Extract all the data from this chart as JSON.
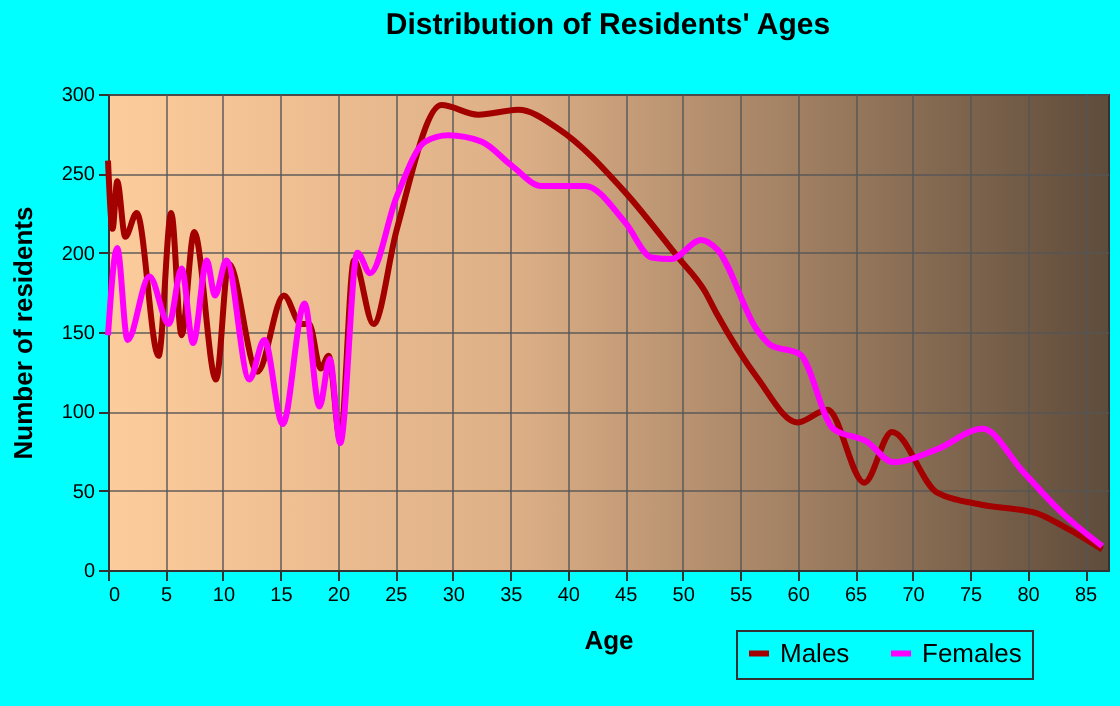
{
  "chart_data": {
    "type": "line",
    "title": "Distribution of Residents' Ages",
    "xlabel": "Age",
    "ylabel": "Number of residents",
    "xlim": [
      0,
      87
    ],
    "xticks": [
      0,
      5,
      10,
      15,
      20,
      25,
      30,
      35,
      40,
      45,
      50,
      55,
      60,
      65,
      70,
      75,
      80,
      85
    ],
    "ylim": [
      0,
      300
    ],
    "yticks": [
      0,
      50,
      100,
      150,
      200,
      250,
      300
    ],
    "grid": true,
    "legend": "bottom right",
    "line_style": "solid",
    "marker": "none",
    "series": [
      {
        "name": "Males",
        "color": "#a30000",
        "x": [
          0,
          0.4,
          0.8,
          1.5,
          2.5,
          4.4,
          5.5,
          6.4,
          7.5,
          9.4,
          10.5,
          13,
          15.3,
          16.8,
          17.5,
          18.5,
          19.2,
          20.2,
          21.4,
          23.1,
          25.1,
          29,
          32.2,
          35.7,
          39.2,
          45,
          49.6,
          51.9,
          53,
          56.5,
          60,
          62.6,
          65.8,
          68.2,
          72.1,
          76.1,
          80.7,
          83,
          86.5
        ],
        "values": [
          258,
          215,
          245,
          210,
          225,
          135,
          225,
          148,
          213,
          120,
          193,
          125,
          173,
          155,
          155,
          127,
          135,
          82,
          195,
          155,
          214,
          293,
          287,
          290,
          278,
          238,
          197,
          176,
          161,
          121,
          93,
          101,
          55,
          87,
          49,
          41,
          36,
          28,
          13
        ]
      },
      {
        "name": "Females",
        "color": "#ff00ff",
        "x": [
          0,
          0.8,
          1.7,
          3.6,
          5.3,
          6.4,
          7.4,
          8.6,
          9.3,
          10.3,
          12.3,
          13.6,
          15.2,
          17.1,
          18.4,
          19.3,
          20.2,
          21.7,
          22.8,
          25.1,
          27.6,
          29.6,
          32.5,
          35.1,
          37.7,
          41.5,
          45,
          47.3,
          49,
          51.6,
          53,
          56.5,
          57.6,
          60.2,
          63.1,
          66,
          68.3,
          72.1,
          76.1,
          79.6,
          83,
          86.5
        ],
        "values": [
          148,
          203,
          145,
          185,
          155,
          190,
          143,
          195,
          173,
          195,
          120,
          145,
          92,
          168,
          103,
          133,
          80,
          200,
          187,
          235,
          270,
          274,
          270,
          255,
          242,
          242,
          219,
          197,
          196,
          208,
          202,
          151,
          142,
          136,
          89,
          81,
          68,
          76,
          89,
          62,
          36,
          15
        ]
      }
    ]
  }
}
